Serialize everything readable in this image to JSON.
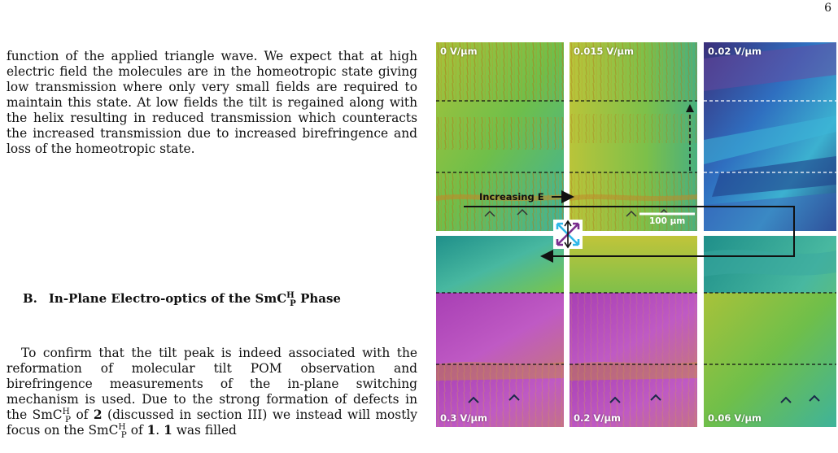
{
  "page_number": "6",
  "paragraph_1": "function of the applied triangle wave. We expect that at high electric field the molecules are in the homeotropic state giving low transmission where only very small fields are required to maintain this state. At low fields the tilt is regained along with the helix resulting in reduced transmission which counteracts the increased transmission due to increased birefringence and loss of the homeotropic state.",
  "section": {
    "number": "B.",
    "title_prefix": "In-Plane Electro-optics of the SmC",
    "title_sup": "H",
    "title_sub": "P",
    "title_suffix": " Phase"
  },
  "paragraph_2": {
    "part_1": "To confirm that the tilt peak is indeed associated with the reformation of molecular tilt POM observation and birefringence measurements of the in-plane switching mechanism is used. Due to the strong formation of defects in the SmC",
    "part_2": " of ",
    "bold_2": "2",
    "part_3": " (discussed in section III) we instead will mostly focus on the SmC",
    "part_4": " of ",
    "bold_1a": "1",
    "part_5": ". ",
    "bold_1b": "1",
    "part_6": " was filled",
    "sup": "H",
    "sub": "P"
  },
  "figure": {
    "panel_labels": {
      "top_left": "0 V/µm",
      "top_middle": "0.015 V/µm",
      "top_right": "0.02 V/µm",
      "bottom_left": "0.3 V/µm",
      "bottom_middle": "0.2 V/µm",
      "bottom_right": "0.06 V/µm"
    },
    "increasing_label": "Increasing E",
    "scale_bar_label": "100 µm",
    "colors": {
      "green": "#7dbb3a",
      "teal": "#2fa89a",
      "magenta": "#b048b8",
      "blue": "#2c5db0",
      "crossed_polarizer_a": "#2fb7e8",
      "crossed_polarizer_b": "#7a2f8f"
    }
  }
}
